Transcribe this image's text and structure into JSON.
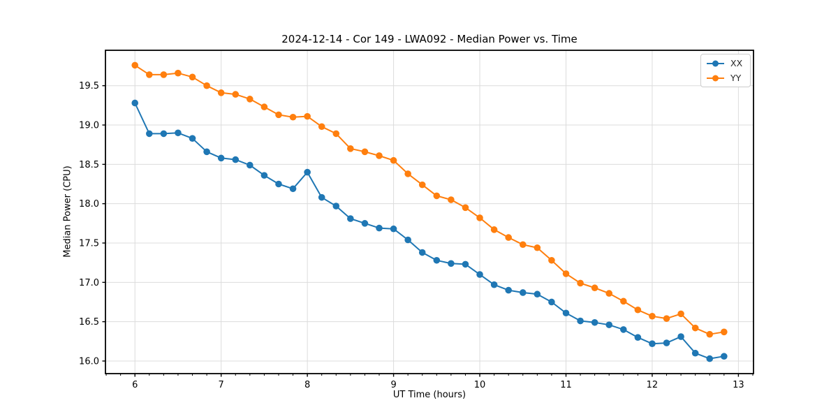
{
  "figure": {
    "title": "2024-12-14 - Cor 149 - LWA092 - Median Power vs. Time"
  },
  "chart_data": {
    "type": "line",
    "title": "2024-12-14 - Cor 149 - LWA092 - Median Power vs. Time",
    "xlabel": "UT Time (hours)",
    "ylabel": "Median Power (CPU)",
    "xlim": [
      5.658,
      13.175
    ],
    "ylim": [
      15.84,
      19.95
    ],
    "xticks": [
      6,
      7,
      8,
      9,
      10,
      11,
      12,
      13
    ],
    "xtick_labels": [
      "6",
      "7",
      "8",
      "9",
      "10",
      "11",
      "12",
      "13"
    ],
    "yticks": [
      16.0,
      16.5,
      17.0,
      17.5,
      18.0,
      18.5,
      19.0,
      19.5
    ],
    "ytick_labels": [
      "16.0",
      "16.5",
      "17.0",
      "17.5",
      "18.0",
      "18.5",
      "19.0",
      "19.5"
    ],
    "x_minor_tick_step": 0.1666667,
    "grid": true,
    "grid_color": "#dcdcdc",
    "legend_position": "upper right",
    "x": [
      6.0,
      6.1667,
      6.3333,
      6.5,
      6.6667,
      6.8333,
      7.0,
      7.1667,
      7.3333,
      7.5,
      7.6667,
      7.8333,
      8.0,
      8.1667,
      8.3333,
      8.5,
      8.6667,
      8.8333,
      9.0,
      9.1667,
      9.3333,
      9.5,
      9.6667,
      9.8333,
      10.0,
      10.1667,
      10.3333,
      10.5,
      10.6667,
      10.8333,
      11.0,
      11.1667,
      11.3333,
      11.5,
      11.6667,
      11.8333,
      12.0,
      12.1667,
      12.3333,
      12.5,
      12.6667,
      12.8333
    ],
    "series": [
      {
        "name": "XX",
        "color": "#1f77b4",
        "values": [
          19.28,
          18.89,
          18.89,
          18.9,
          18.83,
          18.66,
          18.58,
          18.56,
          18.49,
          18.36,
          18.25,
          18.19,
          18.4,
          18.08,
          17.97,
          17.81,
          17.75,
          17.69,
          17.68,
          17.54,
          17.38,
          17.28,
          17.24,
          17.23,
          17.1,
          16.97,
          16.9,
          16.87,
          16.85,
          16.75,
          16.61,
          16.51,
          16.49,
          16.46,
          16.4,
          16.3,
          16.22,
          16.23,
          16.31,
          16.1,
          16.03,
          16.06
        ]
      },
      {
        "name": "YY",
        "color": "#ff7f0e",
        "values": [
          19.76,
          19.64,
          19.64,
          19.66,
          19.61,
          19.5,
          19.41,
          19.39,
          19.33,
          19.23,
          19.13,
          19.1,
          19.11,
          18.98,
          18.89,
          18.7,
          18.66,
          18.61,
          18.55,
          18.38,
          18.24,
          18.1,
          18.05,
          17.95,
          17.82,
          17.67,
          17.57,
          17.48,
          17.44,
          17.28,
          17.11,
          16.99,
          16.93,
          16.86,
          16.76,
          16.65,
          16.57,
          16.54,
          16.6,
          16.42,
          16.34,
          16.37
        ]
      }
    ]
  }
}
